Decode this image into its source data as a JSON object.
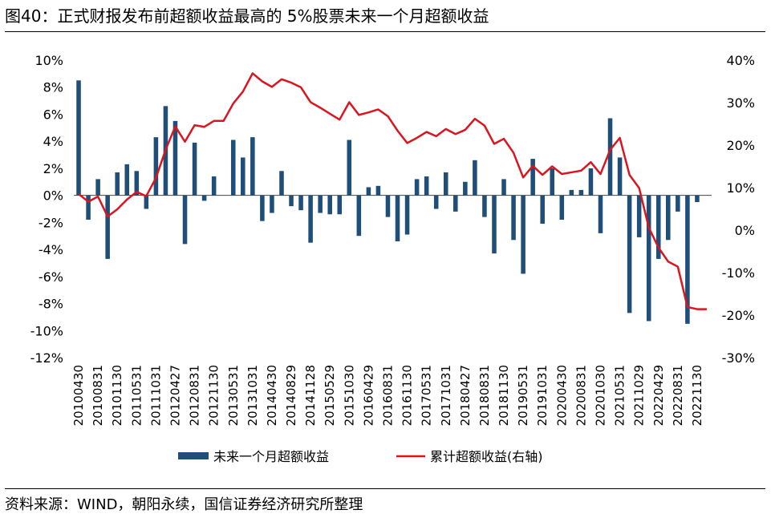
{
  "figure": {
    "title": "图40：正式财报发布前超额收益最高的 5%股票未来一个月超额收益",
    "source": "资料来源：WIND，朝阳永续，国信证券经济研究所整理"
  },
  "chart_data": {
    "type": "bar+line",
    "title": "图40：正式财报发布前超额收益最高的 5%股票未来一个月超额收益",
    "left_axis": {
      "ylim": [
        -12,
        10
      ],
      "ticks": [
        10,
        8,
        6,
        4,
        2,
        0,
        -2,
        -4,
        -6,
        -8,
        -10,
        -12
      ],
      "tick_labels": [
        "10%",
        "8%",
        "6%",
        "4%",
        "2%",
        "0%",
        "-2%",
        "-4%",
        "-6%",
        "-8%",
        "-10%",
        "-12%"
      ]
    },
    "right_axis": {
      "ylim": [
        -30,
        40
      ],
      "ticks": [
        40,
        30,
        20,
        10,
        0,
        -10,
        -20,
        -30
      ],
      "tick_labels": [
        "40%",
        "30%",
        "20%",
        "10%",
        "0%",
        "-10%",
        "-20%",
        "-30%"
      ]
    },
    "x_tick_labels": [
      "20100430",
      "20100831",
      "20101130",
      "20110531",
      "20111031",
      "20120427",
      "20120831",
      "20121130",
      "20130531",
      "20131031",
      "20140430",
      "20140829",
      "20141128",
      "20150529",
      "20151030",
      "20160429",
      "20160831",
      "20161130",
      "20170531",
      "20171031",
      "20180427",
      "20180831",
      "20181130",
      "20190531",
      "20191031",
      "20200430",
      "20200831",
      "20201030",
      "20210531",
      "20211029",
      "20220429",
      "20220831",
      "20221130"
    ],
    "n_periods": 66,
    "series": [
      {
        "name": "未来一个月超额收益",
        "type": "bar",
        "axis": "left",
        "color": "#1F4E79",
        "values": [
          8.5,
          -1.8,
          1.2,
          -4.7,
          1.7,
          2.3,
          1.8,
          -1.0,
          4.3,
          6.6,
          5.5,
          -3.6,
          3.9,
          -0.4,
          1.4,
          0.0,
          4.1,
          2.8,
          4.3,
          -1.9,
          -1.3,
          1.8,
          -0.8,
          -1.1,
          -3.5,
          -1.3,
          -1.4,
          -1.4,
          4.1,
          -3.0,
          0.6,
          0.7,
          -1.6,
          -3.4,
          -2.9,
          1.2,
          1.4,
          -1.0,
          1.7,
          -1.2,
          1.0,
          2.6,
          -1.6,
          -4.3,
          1.2,
          -3.3,
          -5.8,
          2.7,
          -2.1,
          2.0,
          -1.8,
          0.4,
          0.4,
          2.0,
          -2.8,
          5.7,
          2.8,
          -8.7,
          -3.1,
          -9.3,
          -4.7,
          -3.3,
          -1.2,
          -9.5,
          -0.5,
          0.0
        ]
      },
      {
        "name": "累计超额收益(右轴)",
        "type": "line",
        "axis": "right",
        "color": "#D9151F",
        "values": [
          8.5,
          6.7,
          7.9,
          3.2,
          4.9,
          7.2,
          9.0,
          8.0,
          12.3,
          18.9,
          24.4,
          20.8,
          24.7,
          24.3,
          25.7,
          25.7,
          29.8,
          32.6,
          36.9,
          35.0,
          33.7,
          35.5,
          34.7,
          33.6,
          30.1,
          28.8,
          27.4,
          26.0,
          30.1,
          27.1,
          27.7,
          28.4,
          26.8,
          23.4,
          20.5,
          21.7,
          23.1,
          22.1,
          23.8,
          22.6,
          23.6,
          26.2,
          24.6,
          20.3,
          21.5,
          18.2,
          12.4,
          15.1,
          13.0,
          15.0,
          13.2,
          13.6,
          14.0,
          16.0,
          13.2,
          18.9,
          21.7,
          13.0,
          9.9,
          0.6,
          -4.1,
          -7.4,
          -8.6,
          -18.1,
          -18.6,
          -18.6
        ]
      }
    ],
    "legend": {
      "placement": "bottom-center",
      "entries": [
        "未来一个月超额收益",
        "累计超额收益(右轴)"
      ]
    }
  }
}
